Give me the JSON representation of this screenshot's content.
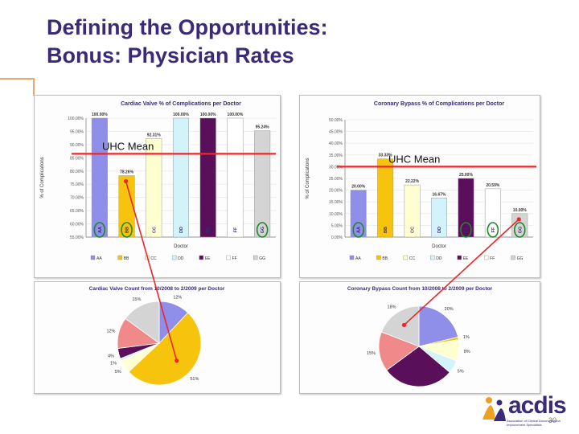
{
  "slide": {
    "title_line1": "Defining the Opportunities:",
    "title_line2": "Bonus: Physician Rates",
    "page_number": "30",
    "logo_text": "acdis",
    "logo_tagline": "Association of Clinical Documentation Improvement Specialists",
    "accent_color": "#f0a56a",
    "title_color": "#3b2a78",
    "callout_line_color": "#e8282a"
  },
  "chart_data": [
    {
      "type": "bar",
      "title": "Cardiac Valve % of Complications per Doctor",
      "xlabel": "Doctor",
      "ylabel": "% of Complications",
      "categories": [
        "AA",
        "BB",
        "CC",
        "DD",
        "EE",
        "FF",
        "GG"
      ],
      "values": [
        100.0,
        78.26,
        92.31,
        100.0,
        100.0,
        100.0,
        95.24
      ],
      "data_labels": [
        "100.00%",
        "78.26%",
        "92.31%",
        "100.00%",
        "100.00%",
        "100.00%",
        "95.24%"
      ],
      "colors": [
        "#8f8ee8",
        "#f6c40c",
        "#ffffd2",
        "#d3f3fa",
        "#5a0f5a",
        "#ffffff",
        "#d4d4d4"
      ],
      "ylim": [
        55,
        100
      ],
      "y_ticks": [
        "55.00%",
        "60.00%",
        "65.00%",
        "70.00%",
        "75.00%",
        "80.00%",
        "85.00%",
        "90.00%",
        "95.00%",
        "100.00%"
      ],
      "reference_line": {
        "label": "UHC Mean",
        "value": 86.5,
        "color": "#e8282a"
      },
      "circled_categories": [
        "AA",
        "BB",
        "GG"
      ],
      "legend": [
        "AA",
        "BB",
        "CC",
        "DD",
        "EE",
        "FF",
        "GG"
      ],
      "legend_position": "bottom"
    },
    {
      "type": "bar",
      "title": "Coronary Bypass % of Complications per Doctor",
      "xlabel": "Doctor",
      "ylabel": "% of Complications",
      "categories": [
        "AA",
        "BB",
        "CC",
        "DD",
        "EE",
        "FF",
        "GG"
      ],
      "values": [
        20.0,
        33.33,
        22.22,
        16.67,
        25.0,
        20.59,
        10.0
      ],
      "data_labels": [
        "20.00%",
        "33.33%",
        "22.22%",
        "16.67%",
        "25.00%",
        "20.59%",
        "10.00%"
      ],
      "colors": [
        "#8f8ee8",
        "#f6c40c",
        "#ffffd2",
        "#d3f3fa",
        "#5a0f5a",
        "#ffffff",
        "#d4d4d4"
      ],
      "ylim": [
        0,
        50
      ],
      "y_ticks": [
        "0.00%",
        "5.00%",
        "10.00%",
        "15.00%",
        "20.00%",
        "25.00%",
        "30.00%",
        "35.00%",
        "40.00%",
        "45.00%",
        "50.00%"
      ],
      "reference_line": {
        "label": "UHC Mean",
        "value": 30.0,
        "color": "#e8282a"
      },
      "circled_categories": [
        "AA",
        "EE",
        "FF",
        "GG"
      ],
      "legend": [
        "AA",
        "BB",
        "CC",
        "DD",
        "EE",
        "FF",
        "GG"
      ],
      "legend_position": "bottom"
    },
    {
      "type": "pie",
      "title": "Cardiac Valve Count from 10/2008 to 2/2009 per Doctor",
      "categories": [
        "AA",
        "BB",
        "CC",
        "DD",
        "EE",
        "FF",
        "GG"
      ],
      "values": [
        12,
        51,
        5,
        1,
        4,
        12,
        15
      ],
      "data_labels": [
        "12%",
        "51%",
        "5%",
        "1%",
        "4%",
        "12%",
        "15%"
      ],
      "colors": [
        "#8f8ee8",
        "#f6c40c",
        "#ffffd2",
        "#d3f3fa",
        "#5a0f5a",
        "#f08a8a",
        "#d4d4d4"
      ]
    },
    {
      "type": "pie",
      "title": "Coronary Bypass Count from 10/2008 to 2/2009 per Doctor",
      "categories": [
        "AA",
        "BB",
        "CC",
        "DD",
        "EE",
        "FF",
        "GG"
      ],
      "values": [
        20,
        1,
        8,
        5,
        27,
        15,
        18
      ],
      "data_labels": [
        "20%",
        "1%",
        "8%",
        "5%",
        "27%",
        "15%",
        "18%"
      ],
      "colors": [
        "#8f8ee8",
        "#f6c40c",
        "#ffffd2",
        "#d3f3fa",
        "#5a0f5a",
        "#f08a8a",
        "#d4d4d4"
      ]
    }
  ]
}
